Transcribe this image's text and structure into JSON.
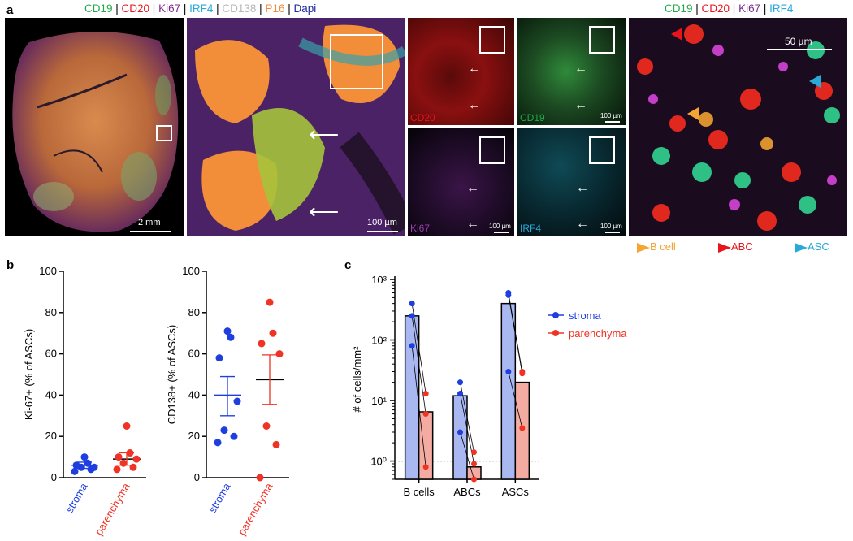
{
  "panel_a": {
    "letter": "a",
    "markers_top": [
      {
        "text": "CD19",
        "color": "#22a84a"
      },
      {
        "text": " | ",
        "color": "#000000"
      },
      {
        "text": "CD20",
        "color": "#e8141c"
      },
      {
        "text": " | ",
        "color": "#000000"
      },
      {
        "text": "Ki67",
        "color": "#7b2d8e"
      },
      {
        "text": " | ",
        "color": "#000000"
      },
      {
        "text": "IRF4",
        "color": "#28a9d8"
      },
      {
        "text": " | ",
        "color": "#000000"
      },
      {
        "text": "CD138",
        "color": "#b5b5b5"
      },
      {
        "text": " | ",
        "color": "#000000"
      },
      {
        "text": "P16",
        "color": "#f08a3c"
      },
      {
        "text": " | ",
        "color": "#000000"
      },
      {
        "text": "Dapi",
        "color": "#1f2a9a"
      }
    ],
    "markers_right": [
      {
        "text": "CD19",
        "color": "#22a84a"
      },
      {
        "text": " | ",
        "color": "#000000"
      },
      {
        "text": "CD20",
        "color": "#e8141c"
      },
      {
        "text": " | ",
        "color": "#000000"
      },
      {
        "text": "Ki67",
        "color": "#7b2d8e"
      },
      {
        "text": " | ",
        "color": "#000000"
      },
      {
        "text": "IRF4",
        "color": "#28a9d8"
      }
    ],
    "scale_overview": "2 mm",
    "scale_zoom": "100 µm",
    "scale_small": "100 µm",
    "scale_detail": "50 µm",
    "channel_labels": {
      "cd20": {
        "text": "CD20",
        "color": "#e8141c"
      },
      "cd19": {
        "text": "CD19",
        "color": "#22a84a"
      },
      "ki67": {
        "text": "Ki67",
        "color": "#9a3fb0"
      },
      "irf4": {
        "text": "IRF4",
        "color": "#28a9d8"
      }
    },
    "cell_keys": [
      {
        "text": "B cell",
        "color": "#f4a533"
      },
      {
        "text": "ABC",
        "color": "#e8141c"
      },
      {
        "text": "ASC",
        "color": "#28a9d8"
      }
    ]
  },
  "panel_b": {
    "letter": "b",
    "chart_data": [
      {
        "type": "scatter",
        "ylabel": "Ki-67+ (% of ASCs)",
        "ylim": [
          0,
          100
        ],
        "yticks": [
          0,
          20,
          40,
          60,
          80,
          100
        ],
        "groups": [
          {
            "name": "stroma",
            "color": "#1f3ee0",
            "values": [
              3,
              4,
              5,
              5,
              6,
              7,
              10
            ],
            "mean": 6,
            "sem_low": 4.5,
            "sem_high": 7.5
          },
          {
            "name": "parenchyma",
            "color": "#ef3324",
            "values": [
              4,
              5,
              7,
              9,
              10,
              12,
              25
            ],
            "mean": 9,
            "sem_low": 6,
            "sem_high": 12
          }
        ]
      },
      {
        "type": "scatter",
        "ylabel": "CD138+ (% of ASCs)",
        "ylim": [
          0,
          100
        ],
        "yticks": [
          0,
          20,
          40,
          60,
          80,
          100
        ],
        "groups": [
          {
            "name": "stroma",
            "color": "#1f3ee0",
            "values": [
              17,
              20,
              23,
              37,
              58,
              68,
              71
            ],
            "mean": 40,
            "sem_low": 30,
            "sem_high": 49
          },
          {
            "name": "parenchyma",
            "color": "#ef3324",
            "values": [
              0,
              16,
              25,
              60,
              65,
              70,
              85
            ],
            "mean": 47.5,
            "sem_low": 35.5,
            "sem_high": 59.5
          }
        ]
      }
    ]
  },
  "panel_c": {
    "letter": "c",
    "chart_data": {
      "type": "bar",
      "log_scale": true,
      "ylabel": "# of cells/mm²",
      "ylim": [
        0.5,
        1000
      ],
      "ytick_labels": [
        "10⁰",
        "10¹",
        "10²",
        "10³"
      ],
      "categories": [
        "B cells",
        "ABCs",
        "ASCs"
      ],
      "series": [
        {
          "name": "stroma",
          "fill": "#a9b8f0",
          "point": "#1f3ee0",
          "values": [
            250,
            12,
            400
          ],
          "points": [
            400,
            250,
            80,
            20,
            13,
            3,
            600,
            550,
            30
          ]
        },
        {
          "name": "parenchyma",
          "fill": "#f4aca2",
          "point": "#ef3324",
          "values": [
            6.5,
            0.8,
            20
          ],
          "points": [
            13,
            6,
            0.8,
            1.4,
            0.9,
            0.5,
            30,
            28,
            3.5
          ]
        }
      ],
      "reference_line": 1
    }
  }
}
